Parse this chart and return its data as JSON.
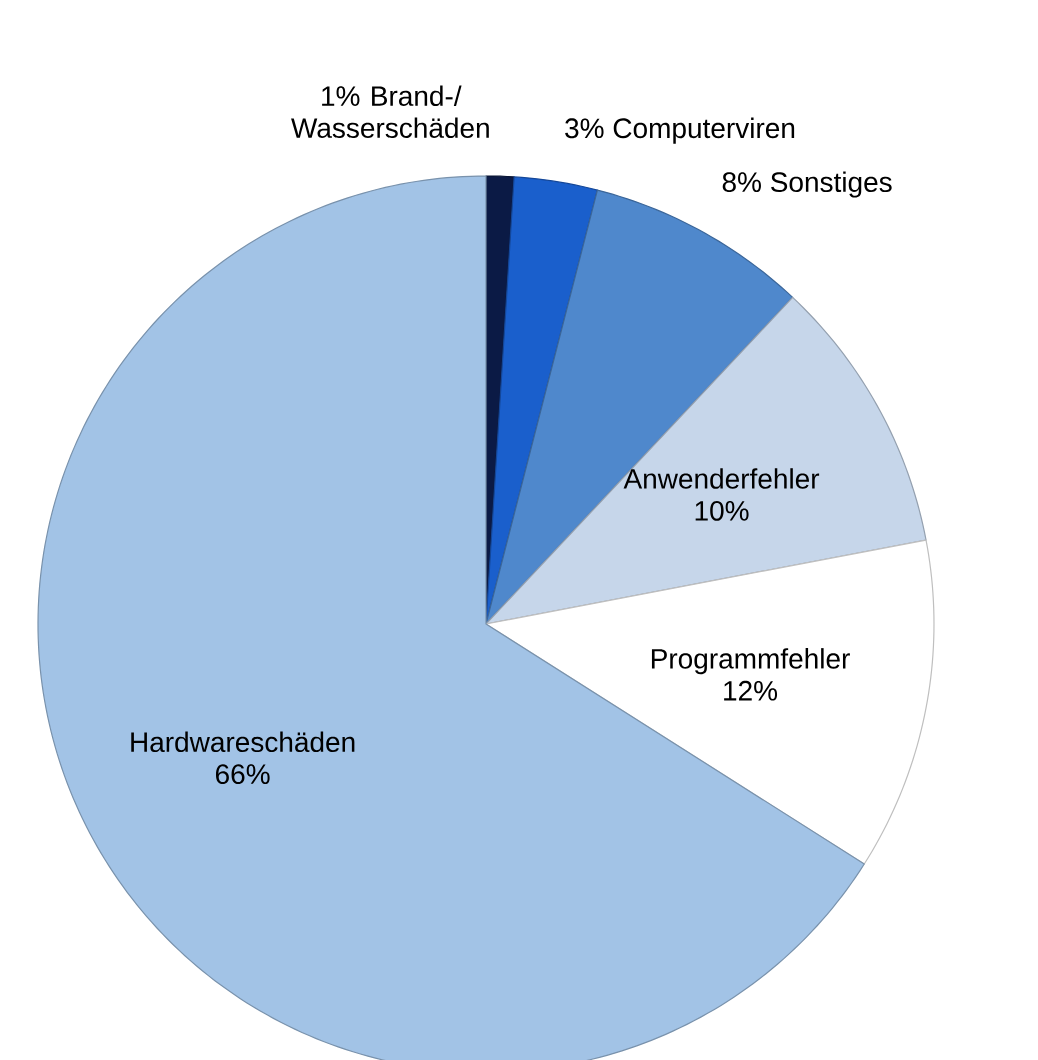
{
  "chart_data": {
    "type": "pie",
    "categories": [
      "Brand-/ Wasserschäden",
      "Computerviren",
      "Sonstiges",
      "Anwenderfehler",
      "Programmfehler",
      "Hardwareschäden"
    ],
    "values": [
      1,
      3,
      8,
      10,
      12,
      66
    ],
    "value_labels": [
      "1%",
      "3%",
      "8%",
      "10%",
      "12%",
      "66%"
    ],
    "colors": [
      "#0b1a45",
      "#1a5fcc",
      "#4f88cc",
      "#c6d6ea",
      "#ffffff",
      "#a2c3e6"
    ]
  }
}
